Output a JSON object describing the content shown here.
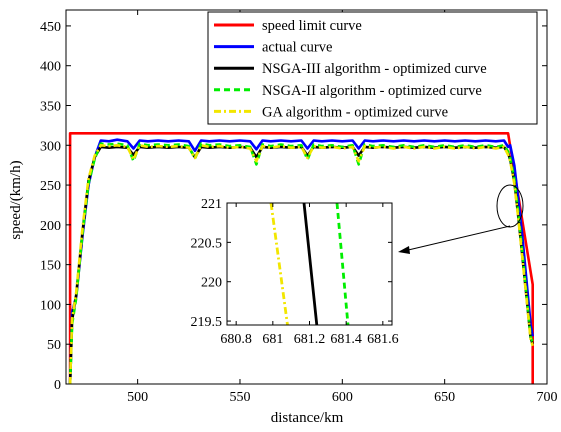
{
  "chart_data": {
    "type": "line",
    "xlabel": "distance/km",
    "ylabel": "speed/(km/h)",
    "xlim": [
      465,
      700
    ],
    "ylim": [
      0,
      470
    ],
    "xticks": [
      500,
      550,
      600,
      650,
      700
    ],
    "yticks": [
      0,
      50,
      100,
      150,
      200,
      250,
      300,
      350,
      400,
      450
    ],
    "grid": false,
    "legend_position": "top-right",
    "series": [
      {
        "name": "speed limit curve",
        "color": "#ff0000",
        "dash": "solid",
        "x": [
          467,
          467,
          681,
          693,
          693
        ],
        "y": [
          0,
          315,
          315,
          125,
          0
        ]
      },
      {
        "name": "actual curve",
        "color": "#0000ff",
        "dash": "solid",
        "x": [
          467,
          468,
          470,
          473,
          476,
          479,
          482,
          486,
          490,
          495,
          498,
          501,
          505,
          510,
          515,
          520,
          525,
          528,
          531,
          535,
          540,
          545,
          550,
          555,
          558,
          561,
          565,
          570,
          575,
          580,
          583,
          586,
          590,
          595,
          600,
          605,
          608,
          611,
          615,
          620,
          625,
          630,
          635,
          640,
          645,
          650,
          655,
          660,
          665,
          670,
          675,
          679,
          681,
          682,
          684,
          686,
          688,
          690,
          692,
          693
        ],
        "y": [
          0,
          90,
          110,
          185,
          250,
          285,
          306,
          305,
          307,
          305,
          296,
          306,
          305,
          306,
          305,
          306,
          305,
          293,
          306,
          305,
          306,
          305,
          306,
          305,
          295,
          306,
          305,
          306,
          305,
          306,
          296,
          306,
          305,
          306,
          305,
          306,
          296,
          306,
          305,
          306,
          305,
          306,
          305,
          306,
          305,
          306,
          305,
          306,
          305,
          306,
          305,
          306,
          298,
          300,
          275,
          232,
          185,
          130,
          75,
          60
        ]
      },
      {
        "name": "NSGA-III algorithm - optimized curve",
        "color": "#000000",
        "dash": "solid",
        "x": [
          467,
          468,
          470,
          473,
          476,
          479,
          482,
          486,
          490,
          495,
          498,
          501,
          505,
          510,
          515,
          520,
          525,
          528,
          531,
          535,
          540,
          545,
          550,
          555,
          558,
          561,
          565,
          570,
          575,
          580,
          583,
          586,
          590,
          595,
          600,
          605,
          608,
          611,
          615,
          620,
          625,
          630,
          635,
          640,
          645,
          650,
          655,
          660,
          665,
          670,
          675,
          679,
          681,
          682,
          684,
          686,
          688,
          690,
          692,
          693
        ],
        "y": [
          0,
          80,
          112,
          190,
          255,
          285,
          298,
          297,
          298,
          297,
          288,
          298,
          297,
          298,
          297,
          298,
          297,
          285,
          298,
          297,
          298,
          297,
          298,
          297,
          285,
          298,
          297,
          298,
          297,
          298,
          287,
          298,
          297,
          298,
          297,
          298,
          287,
          298,
          297,
          298,
          297,
          298,
          297,
          298,
          297,
          298,
          297,
          298,
          297,
          298,
          297,
          298,
          290,
          282,
          255,
          210,
          160,
          110,
          58,
          50
        ]
      },
      {
        "name": "NSGA-II algorithm - optimized curve",
        "color": "#00ee00",
        "dash": "dashed",
        "x": [
          467,
          468,
          470,
          473,
          476,
          479,
          482,
          486,
          490,
          495,
          498,
          501,
          505,
          510,
          515,
          520,
          525,
          528,
          531,
          535,
          540,
          545,
          550,
          555,
          558,
          561,
          565,
          570,
          575,
          580,
          583,
          586,
          590,
          595,
          600,
          605,
          608,
          611,
          615,
          620,
          625,
          630,
          635,
          640,
          645,
          650,
          655,
          660,
          665,
          670,
          675,
          679,
          681,
          682,
          684,
          686,
          688,
          690,
          692,
          693
        ],
        "y": [
          0,
          75,
          108,
          188,
          252,
          283,
          302,
          301,
          302,
          300,
          280,
          302,
          300,
          301,
          300,
          301,
          299,
          283,
          302,
          300,
          301,
          299,
          300,
          298,
          276,
          301,
          299,
          301,
          299,
          300,
          282,
          301,
          299,
          300,
          298,
          300,
          276,
          301,
          299,
          300,
          298,
          300,
          298,
          300,
          298,
          300,
          298,
          300,
          298,
          300,
          298,
          300,
          292,
          284,
          258,
          215,
          165,
          112,
          60,
          52
        ]
      },
      {
        "name": "GA algorithm - optimized curve",
        "color": "#f2e600",
        "dash": "dashdot",
        "x": [
          467,
          468,
          470,
          473,
          476,
          479,
          482,
          486,
          490,
          495,
          498,
          501,
          505,
          510,
          515,
          520,
          525,
          528,
          531,
          535,
          540,
          545,
          550,
          555,
          558,
          561,
          565,
          570,
          575,
          580,
          583,
          586,
          590,
          595,
          600,
          605,
          608,
          611,
          615,
          620,
          625,
          630,
          635,
          640,
          645,
          650,
          655,
          660,
          665,
          670,
          675,
          679,
          681,
          682,
          684,
          686,
          688,
          690,
          692,
          693
        ],
        "y": [
          0,
          82,
          115,
          195,
          258,
          287,
          300,
          299,
          300,
          298,
          282,
          300,
          298,
          299,
          298,
          299,
          297,
          284,
          300,
          298,
          299,
          297,
          298,
          296,
          280,
          299,
          297,
          299,
          297,
          298,
          284,
          299,
          297,
          298,
          296,
          298,
          280,
          299,
          297,
          298,
          296,
          298,
          296,
          298,
          296,
          298,
          296,
          298,
          296,
          298,
          296,
          298,
          288,
          280,
          252,
          208,
          158,
          108,
          56,
          48
        ]
      }
    ],
    "inset": {
      "xlim": [
        680.75,
        681.65
      ],
      "ylim": [
        219.45,
        221.0
      ],
      "xticks": [
        680.8,
        681,
        681.2,
        681.4,
        681.6
      ],
      "yticks": [
        219.5,
        220,
        220.5,
        221
      ],
      "series": [
        {
          "name": "GA algorithm - optimized curve",
          "color": "#f2e600",
          "dash": "dashdot",
          "x": [
            680.99,
            681.08
          ],
          "y": [
            221.0,
            219.45
          ]
        },
        {
          "name": "NSGA-III algorithm - optimized curve",
          "color": "#000000",
          "dash": "solid",
          "x": [
            681.17,
            681.24
          ],
          "y": [
            221.0,
            219.45
          ]
        },
        {
          "name": "NSGA-II algorithm - optimized curve",
          "color": "#00ee00",
          "dash": "dashed",
          "x": [
            681.35,
            681.41
          ],
          "y": [
            221.0,
            219.45
          ]
        }
      ]
    }
  }
}
